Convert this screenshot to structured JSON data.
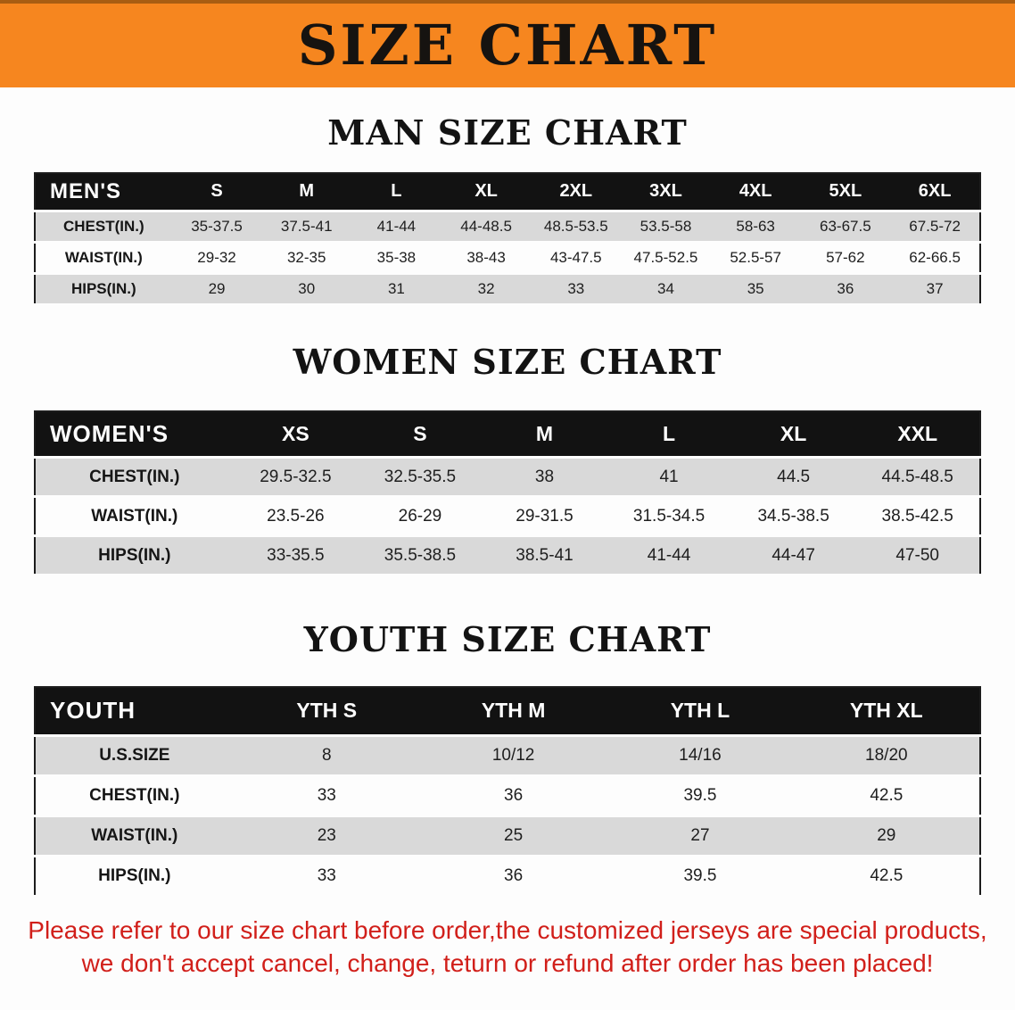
{
  "banner": {
    "title": "SIZE CHART"
  },
  "sections": [
    {
      "heading": "MAN SIZE CHART",
      "table": {
        "header": [
          "MEN'S",
          "S",
          "M",
          "L",
          "XL",
          "2XL",
          "3XL",
          "4XL",
          "5XL",
          "6XL"
        ],
        "rows": [
          [
            "CHEST(IN.)",
            "35-37.5",
            "37.5-41",
            "41-44",
            "44-48.5",
            "48.5-53.5",
            "53.5-58",
            "58-63",
            "63-67.5",
            "67.5-72"
          ],
          [
            "WAIST(IN.)",
            "29-32",
            "32-35",
            "35-38",
            "38-43",
            "43-47.5",
            "47.5-52.5",
            "52.5-57",
            "57-62",
            "62-66.5"
          ],
          [
            "HIPS(IN.)",
            "29",
            "30",
            "31",
            "32",
            "33",
            "34",
            "35",
            "36",
            "37"
          ]
        ]
      }
    },
    {
      "heading": "WOMEN SIZE CHART",
      "table": {
        "header": [
          "WOMEN'S",
          "XS",
          "S",
          "M",
          "L",
          "XL",
          "XXL"
        ],
        "rows": [
          [
            "CHEST(IN.)",
            "29.5-32.5",
            "32.5-35.5",
            "38",
            "41",
            "44.5",
            "44.5-48.5"
          ],
          [
            "WAIST(IN.)",
            "23.5-26",
            "26-29",
            "29-31.5",
            "31.5-34.5",
            "34.5-38.5",
            "38.5-42.5"
          ],
          [
            "HIPS(IN.)",
            "33-35.5",
            "35.5-38.5",
            "38.5-41",
            "41-44",
            "44-47",
            "47-50"
          ]
        ]
      }
    },
    {
      "heading": "YOUTH SIZE CHART",
      "table": {
        "header": [
          "YOUTH",
          "YTH S",
          "YTH M",
          "YTH L",
          "YTH XL"
        ],
        "rows": [
          [
            "U.S.SIZE",
            "8",
            "10/12",
            "14/16",
            "18/20"
          ],
          [
            "CHEST(IN.)",
            "33",
            "36",
            "39.5",
            "42.5"
          ],
          [
            "WAIST(IN.)",
            "23",
            "25",
            "27",
            "29"
          ],
          [
            "HIPS(IN.)",
            "33",
            "36",
            "39.5",
            "42.5"
          ]
        ]
      }
    }
  ],
  "disclaimer": {
    "line1": "Please refer to our size chart before order,the customized jerseys are special products,",
    "line2": "we don't accept cancel, change, teturn or refund after order has been placed!"
  },
  "colors": {
    "banner_bg": "#f6861f",
    "banner_text": "#161310",
    "table_header_bg": "#121212",
    "table_header_text": "#ffffff",
    "stripe_row_bg": "#d9d9d9",
    "disclaimer_text": "#d11f1a"
  }
}
